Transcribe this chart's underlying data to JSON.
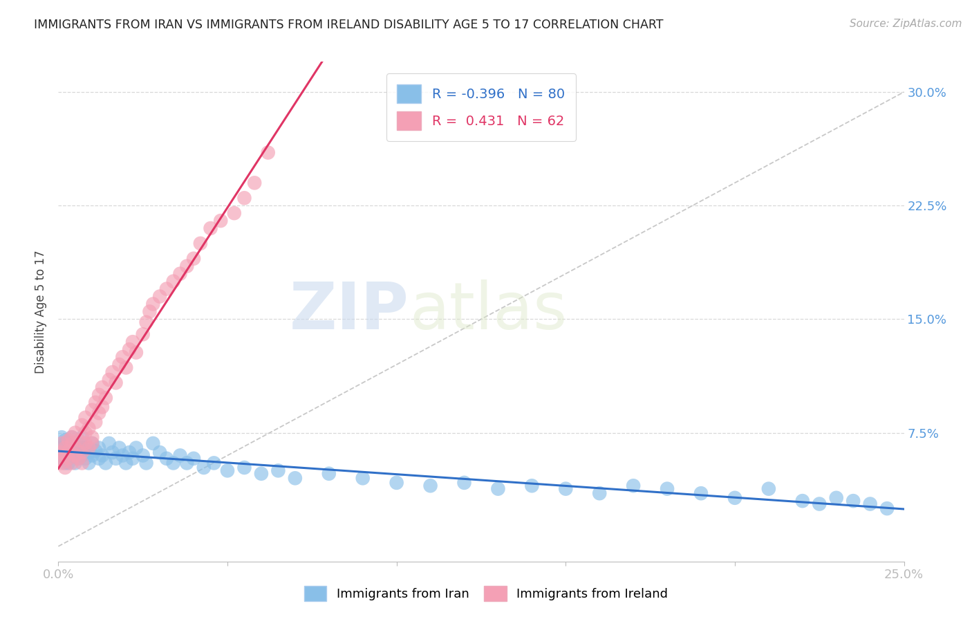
{
  "title": "IMMIGRANTS FROM IRAN VS IMMIGRANTS FROM IRELAND DISABILITY AGE 5 TO 17 CORRELATION CHART",
  "source": "Source: ZipAtlas.com",
  "ylabel": "Disability Age 5 to 17",
  "x_min": 0.0,
  "x_max": 0.25,
  "y_min": -0.01,
  "y_max": 0.32,
  "iran_R": -0.396,
  "iran_N": 80,
  "ireland_R": 0.431,
  "ireland_N": 62,
  "iran_color": "#89bfe8",
  "ireland_color": "#f4a0b5",
  "iran_line_color": "#3070c8",
  "ireland_line_color": "#e03565",
  "diag_line_color": "#c8c8c8",
  "watermark_zip": "ZIP",
  "watermark_atlas": "atlas",
  "iran_scatter_x": [
    0.0,
    0.001,
    0.001,
    0.001,
    0.002,
    0.002,
    0.002,
    0.002,
    0.003,
    0.003,
    0.003,
    0.003,
    0.004,
    0.004,
    0.004,
    0.005,
    0.005,
    0.005,
    0.006,
    0.006,
    0.006,
    0.007,
    0.007,
    0.007,
    0.008,
    0.008,
    0.009,
    0.009,
    0.01,
    0.01,
    0.011,
    0.012,
    0.012,
    0.013,
    0.014,
    0.015,
    0.016,
    0.017,
    0.018,
    0.019,
    0.02,
    0.021,
    0.022,
    0.023,
    0.025,
    0.026,
    0.028,
    0.03,
    0.032,
    0.034,
    0.036,
    0.038,
    0.04,
    0.043,
    0.046,
    0.05,
    0.055,
    0.06,
    0.065,
    0.07,
    0.08,
    0.09,
    0.1,
    0.11,
    0.12,
    0.13,
    0.14,
    0.15,
    0.16,
    0.17,
    0.18,
    0.19,
    0.2,
    0.21,
    0.22,
    0.225,
    0.23,
    0.235,
    0.24,
    0.245
  ],
  "iran_scatter_y": [
    0.06,
    0.065,
    0.058,
    0.072,
    0.062,
    0.055,
    0.068,
    0.07,
    0.06,
    0.065,
    0.055,
    0.058,
    0.063,
    0.068,
    0.072,
    0.06,
    0.065,
    0.055,
    0.062,
    0.068,
    0.058,
    0.065,
    0.06,
    0.072,
    0.058,
    0.065,
    0.062,
    0.055,
    0.068,
    0.06,
    0.063,
    0.058,
    0.065,
    0.06,
    0.055,
    0.068,
    0.062,
    0.058,
    0.065,
    0.06,
    0.055,
    0.062,
    0.058,
    0.065,
    0.06,
    0.055,
    0.068,
    0.062,
    0.058,
    0.055,
    0.06,
    0.055,
    0.058,
    0.052,
    0.055,
    0.05,
    0.052,
    0.048,
    0.05,
    0.045,
    0.048,
    0.045,
    0.042,
    0.04,
    0.042,
    0.038,
    0.04,
    0.038,
    0.035,
    0.04,
    0.038,
    0.035,
    0.032,
    0.038,
    0.03,
    0.028,
    0.032,
    0.03,
    0.028,
    0.025
  ],
  "ireland_scatter_x": [
    0.0,
    0.001,
    0.001,
    0.001,
    0.002,
    0.002,
    0.002,
    0.003,
    0.003,
    0.003,
    0.004,
    0.004,
    0.004,
    0.005,
    0.005,
    0.005,
    0.006,
    0.006,
    0.007,
    0.007,
    0.007,
    0.008,
    0.008,
    0.008,
    0.009,
    0.009,
    0.01,
    0.01,
    0.01,
    0.011,
    0.011,
    0.012,
    0.012,
    0.013,
    0.013,
    0.014,
    0.015,
    0.016,
    0.017,
    0.018,
    0.019,
    0.02,
    0.021,
    0.022,
    0.023,
    0.025,
    0.026,
    0.027,
    0.028,
    0.03,
    0.032,
    0.034,
    0.036,
    0.038,
    0.04,
    0.042,
    0.045,
    0.048,
    0.052,
    0.055,
    0.058,
    0.062
  ],
  "ireland_scatter_y": [
    0.058,
    0.062,
    0.055,
    0.068,
    0.06,
    0.052,
    0.065,
    0.07,
    0.058,
    0.063,
    0.055,
    0.068,
    0.072,
    0.06,
    0.065,
    0.075,
    0.058,
    0.07,
    0.062,
    0.055,
    0.08,
    0.068,
    0.075,
    0.085,
    0.065,
    0.078,
    0.072,
    0.068,
    0.09,
    0.082,
    0.095,
    0.088,
    0.1,
    0.092,
    0.105,
    0.098,
    0.11,
    0.115,
    0.108,
    0.12,
    0.125,
    0.118,
    0.13,
    0.135,
    0.128,
    0.14,
    0.148,
    0.155,
    0.16,
    0.165,
    0.17,
    0.175,
    0.18,
    0.185,
    0.19,
    0.2,
    0.21,
    0.215,
    0.22,
    0.23,
    0.24,
    0.26
  ]
}
